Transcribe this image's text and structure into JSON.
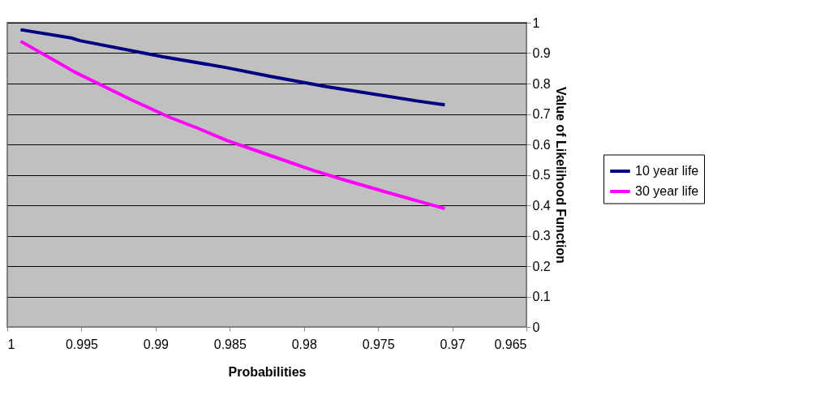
{
  "chart_data": {
    "type": "line",
    "xlabel": "Probabilities",
    "ylabel": "Value of Likelihood Function",
    "xlim": [
      1,
      0.965
    ],
    "xticks": [
      1,
      0.995,
      0.99,
      0.985,
      0.98,
      0.975,
      0.97,
      0.965
    ],
    "ylim": [
      0,
      1
    ],
    "yticks": [
      0,
      0.1,
      0.2,
      0.3,
      0.4,
      0.5,
      0.6,
      0.7,
      0.8,
      0.9,
      1
    ],
    "grid": "y",
    "legend": "right",
    "marker": "none",
    "line_style": "solid",
    "series": [
      {
        "name": "10 year life",
        "color": "#000080",
        "x": [
          0.9991,
          0.9957,
          0.9951,
          0.9895,
          0.9853,
          0.9823,
          0.9785,
          0.9724,
          0.9705
        ],
        "values": [
          0.977,
          0.95,
          0.941,
          0.888,
          0.853,
          0.824,
          0.79,
          0.743,
          0.73
        ]
      },
      {
        "name": "30 year life",
        "color": "#ff00ff",
        "x": [
          0.9991,
          0.9966,
          0.9955,
          0.9917,
          0.989,
          0.9872,
          0.9852,
          0.9823,
          0.9794,
          0.9772,
          0.9745,
          0.9724,
          0.9705
        ],
        "values": [
          0.939,
          0.87,
          0.839,
          0.748,
          0.688,
          0.654,
          0.613,
          0.564,
          0.515,
          0.482,
          0.444,
          0.415,
          0.389
        ]
      }
    ]
  }
}
